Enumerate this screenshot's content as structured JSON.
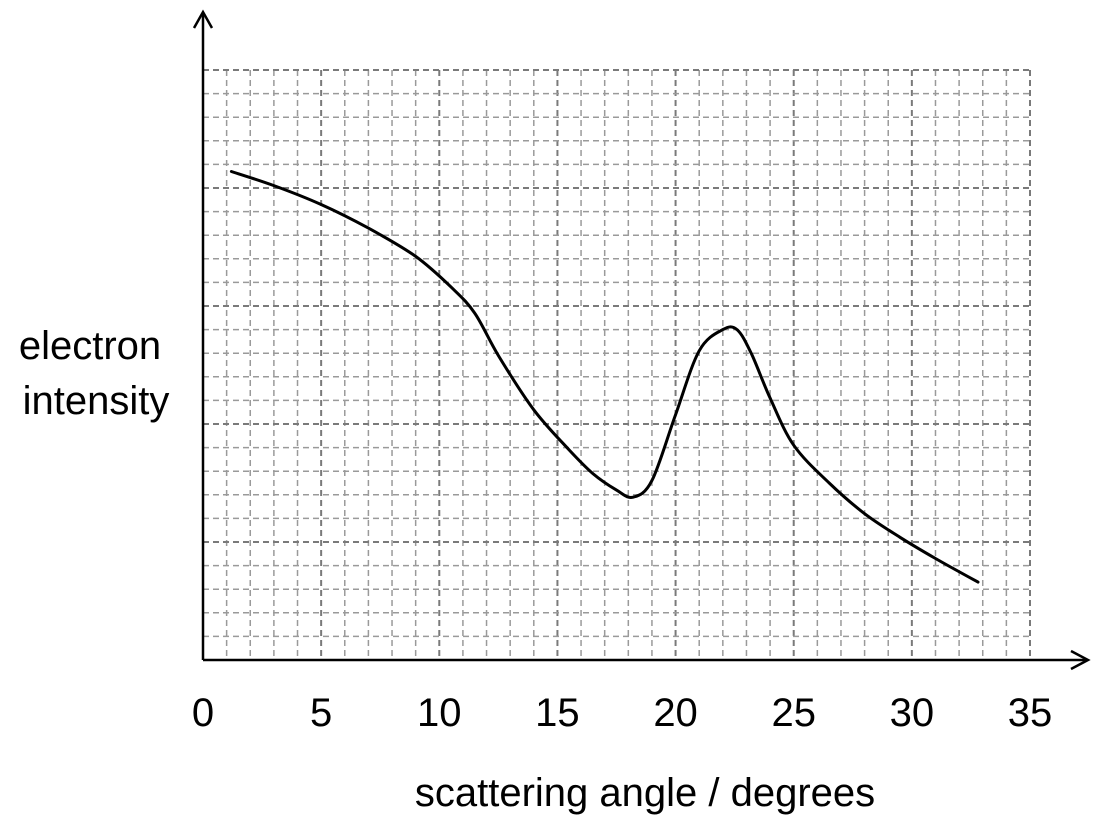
{
  "chart_data": {
    "type": "line",
    "xlabel": "scattering angle / degrees",
    "ylabel_lines": [
      "electron",
      "intensity"
    ],
    "xlim": [
      0,
      35
    ],
    "x_ticks": [
      0,
      5,
      10,
      15,
      20,
      25,
      30,
      35
    ],
    "ylim": [
      0,
      25
    ],
    "grid": true,
    "grid_minor_x_step": 1,
    "grid_minor_y_step": 1,
    "grid_major_y_step": 5,
    "series": [
      {
        "x": [
          1.2,
          3,
          5,
          7,
          9,
          10.5,
          11.5,
          12.5,
          14,
          15.5,
          16.5,
          17.5,
          18.2,
          19,
          20,
          21,
          22,
          22.6,
          23.2,
          24,
          25,
          26.5,
          28,
          29.5,
          31,
          32.8
        ],
        "y": [
          20.7,
          20.1,
          19.3,
          18.3,
          17.1,
          15.8,
          14.7,
          12.9,
          10.6,
          8.9,
          7.9,
          7.2,
          6.9,
          7.6,
          10.4,
          13.1,
          14.0,
          14.0,
          13.0,
          11.1,
          9.1,
          7.5,
          6.2,
          5.2,
          4.3,
          3.3
        ]
      }
    ]
  }
}
